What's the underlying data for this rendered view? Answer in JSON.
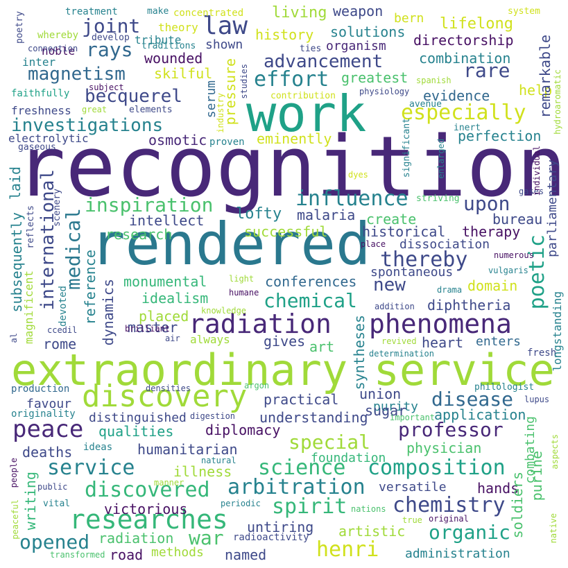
{
  "palette": {
    "c1": "#471063",
    "c2": "#3e4989",
    "c3": "#26828e",
    "c4": "#1fa187",
    "c5": "#4ac16d",
    "c6": "#a0da39",
    "c7": "#d0e11c",
    "c8": "#31688e",
    "c9": "#35b779",
    "c10": "#6ece58",
    "c11": "#482878",
    "c12": "#2a788e"
  },
  "words": [
    {
      "text": "recognition",
      "size": 120,
      "color": "c11"
    },
    {
      "text": "rendered",
      "size": 84,
      "color": "c12"
    },
    {
      "text": "work",
      "size": 72,
      "color": "c4"
    },
    {
      "text": "extraordinary service",
      "size": 62,
      "color": "c6"
    },
    {
      "text": "discovery",
      "size": 44,
      "color": "c6"
    },
    {
      "text": "radiation",
      "size": 38,
      "color": "c11"
    },
    {
      "text": "phenomena",
      "size": 38,
      "color": "c11"
    },
    {
      "text": "researches",
      "size": 38,
      "color": "c9"
    },
    {
      "text": "peace",
      "size": 34,
      "color": "c11"
    },
    {
      "text": "magnetism",
      "size": 26,
      "color": "c8"
    },
    {
      "text": "joint",
      "size": 28,
      "color": "c2"
    },
    {
      "text": "law",
      "size": 36,
      "color": "c2"
    },
    {
      "text": "rays",
      "size": 28,
      "color": "c8"
    },
    {
      "text": "advancement",
      "size": 26,
      "color": "c2"
    },
    {
      "text": "effort",
      "size": 30,
      "color": "c3"
    },
    {
      "text": "rare",
      "size": 28,
      "color": "c2"
    },
    {
      "text": "becquerel",
      "size": 26,
      "color": "c2"
    },
    {
      "text": "investigations",
      "size": 26,
      "color": "c3"
    },
    {
      "text": "especially",
      "size": 30,
      "color": "c7"
    },
    {
      "text": "inspiration",
      "size": 28,
      "color": "c5"
    },
    {
      "text": "influence",
      "size": 30,
      "color": "c3"
    },
    {
      "text": "upon",
      "size": 28,
      "color": "c2"
    },
    {
      "text": "medical",
      "size": 28,
      "color": "c12"
    },
    {
      "text": "international",
      "size": 26,
      "color": "c2"
    },
    {
      "text": "poetic",
      "size": 30,
      "color": "c4"
    },
    {
      "text": "thereby",
      "size": 30,
      "color": "c2"
    },
    {
      "text": "chemical",
      "size": 28,
      "color": "c4"
    },
    {
      "text": "arbitration",
      "size": 30,
      "color": "c3"
    },
    {
      "text": "composition",
      "size": 30,
      "color": "c4"
    },
    {
      "text": "science",
      "size": 30,
      "color": "c9"
    },
    {
      "text": "discovered",
      "size": 30,
      "color": "c9"
    },
    {
      "text": "service",
      "size": 30,
      "color": "c3"
    },
    {
      "text": "spirit",
      "size": 30,
      "color": "c9"
    },
    {
      "text": "chemistry",
      "size": 30,
      "color": "c2"
    },
    {
      "text": "special",
      "size": 28,
      "color": "c6"
    },
    {
      "text": "professor",
      "size": 28,
      "color": "c11"
    },
    {
      "text": "disease",
      "size": 28,
      "color": "c8"
    },
    {
      "text": "opened",
      "size": 28,
      "color": "c3"
    },
    {
      "text": "organic",
      "size": 28,
      "color": "c4"
    },
    {
      "text": "henri",
      "size": 30,
      "color": "c7"
    },
    {
      "text": "war",
      "size": 28,
      "color": "c5"
    },
    {
      "text": "new",
      "size": 26,
      "color": "c2"
    },
    {
      "text": "lifelong",
      "size": 22,
      "color": "c7"
    },
    {
      "text": "living",
      "size": 22,
      "color": "c6"
    },
    {
      "text": "weapon",
      "size": 20,
      "color": "c2"
    },
    {
      "text": "history",
      "size": 20,
      "color": "c7"
    },
    {
      "text": "solutions",
      "size": 20,
      "color": "c3"
    },
    {
      "text": "directorship",
      "size": 20,
      "color": "c1"
    },
    {
      "text": "organism",
      "size": 18,
      "color": "c11"
    },
    {
      "text": "combination",
      "size": 20,
      "color": "c3"
    },
    {
      "text": "greatest",
      "size": 20,
      "color": "c5"
    },
    {
      "text": "wounded",
      "size": 20,
      "color": "c1"
    },
    {
      "text": "skilful",
      "size": 20,
      "color": "c7"
    },
    {
      "text": "help",
      "size": 20,
      "color": "c7"
    },
    {
      "text": "evidence",
      "size": 20,
      "color": "c8"
    },
    {
      "text": "perfection",
      "size": 20,
      "color": "c3"
    },
    {
      "text": "osmotic",
      "size": 20,
      "color": "c11"
    },
    {
      "text": "eminently",
      "size": 20,
      "color": "c7"
    },
    {
      "text": "lofty",
      "size": 22,
      "color": "c3"
    },
    {
      "text": "malaria",
      "size": 20,
      "color": "c2"
    },
    {
      "text": "create",
      "size": 20,
      "color": "c5"
    },
    {
      "text": "bureau",
      "size": 20,
      "color": "c2"
    },
    {
      "text": "intellect",
      "size": 20,
      "color": "c2"
    },
    {
      "text": "research",
      "size": 20,
      "color": "c5"
    },
    {
      "text": "successful",
      "size": 20,
      "color": "c6"
    },
    {
      "text": "historical",
      "size": 20,
      "color": "c2"
    },
    {
      "text": "therapy",
      "size": 20,
      "color": "c1"
    },
    {
      "text": "dissociation",
      "size": 18,
      "color": "c2"
    },
    {
      "text": "spontaneous",
      "size": 18,
      "color": "c2"
    },
    {
      "text": "monumental",
      "size": 20,
      "color": "c9"
    },
    {
      "text": "conferences",
      "size": 20,
      "color": "c8"
    },
    {
      "text": "domain",
      "size": 20,
      "color": "c7"
    },
    {
      "text": "idealism",
      "size": 20,
      "color": "c9"
    },
    {
      "text": "diphtheria",
      "size": 20,
      "color": "c2"
    },
    {
      "text": "placed",
      "size": 20,
      "color": "c6"
    },
    {
      "text": "master",
      "size": 20,
      "color": "c2"
    },
    {
      "text": "rome",
      "size": 20,
      "color": "c2"
    },
    {
      "text": "gives",
      "size": 20,
      "color": "c2"
    },
    {
      "text": "art",
      "size": 20,
      "color": "c5"
    },
    {
      "text": "heart",
      "size": 20,
      "color": "c2"
    },
    {
      "text": "enters",
      "size": 18,
      "color": "c8"
    },
    {
      "text": "union",
      "size": 20,
      "color": "c2"
    },
    {
      "text": "purity",
      "size": 18,
      "color": "c3"
    },
    {
      "text": "practical",
      "size": 20,
      "color": "c2"
    },
    {
      "text": "application",
      "size": 20,
      "color": "c3"
    },
    {
      "text": "favour",
      "size": 18,
      "color": "c2"
    },
    {
      "text": "distinguished",
      "size": 18,
      "color": "c2"
    },
    {
      "text": "understanding",
      "size": 20,
      "color": "c2"
    },
    {
      "text": "sugar",
      "size": 20,
      "color": "c2"
    },
    {
      "text": "diplomacy",
      "size": 20,
      "color": "c1"
    },
    {
      "text": "qualities",
      "size": 20,
      "color": "c4"
    },
    {
      "text": "physician",
      "size": 20,
      "color": "c5"
    },
    {
      "text": "humanitarian",
      "size": 20,
      "color": "c2"
    },
    {
      "text": "deaths",
      "size": 20,
      "color": "c2"
    },
    {
      "text": "foundation",
      "size": 18,
      "color": "c9"
    },
    {
      "text": "illness",
      "size": 20,
      "color": "c6"
    },
    {
      "text": "versatile",
      "size": 18,
      "color": "c2"
    },
    {
      "text": "hands",
      "size": 20,
      "color": "c1"
    },
    {
      "text": "victorious",
      "size": 20,
      "color": "c1"
    },
    {
      "text": "untiring",
      "size": 20,
      "color": "c2"
    },
    {
      "text": "artistic",
      "size": 20,
      "color": "c6"
    },
    {
      "text": "radiation",
      "size": 20,
      "color": "c5"
    },
    {
      "text": "road",
      "size": 20,
      "color": "c1"
    },
    {
      "text": "methods",
      "size": 18,
      "color": "c6"
    },
    {
      "text": "named",
      "size": 20,
      "color": "c2"
    },
    {
      "text": "administration",
      "size": 18,
      "color": "c3"
    },
    {
      "text": "theory",
      "size": 16,
      "color": "c7"
    },
    {
      "text": "tribute",
      "size": 16,
      "color": "c3"
    },
    {
      "text": "shown",
      "size": 18,
      "color": "c2"
    },
    {
      "text": "noble",
      "size": 16,
      "color": "c1"
    },
    {
      "text": "inter",
      "size": 16,
      "color": "c3"
    },
    {
      "text": "freshness",
      "size": 16,
      "color": "c2"
    },
    {
      "text": "electrolytic",
      "size": 16,
      "color": "c2"
    },
    {
      "text": "bern",
      "size": 18,
      "color": "c7"
    },
    {
      "text": "proven",
      "size": 14,
      "color": "c3"
    },
    {
      "text": "treatment",
      "size": 14,
      "color": "c3"
    },
    {
      "text": "make",
      "size": 13,
      "color": "c3"
    },
    {
      "text": "concentrated",
      "size": 14,
      "color": "c7"
    },
    {
      "text": "system",
      "size": 13,
      "color": "c7"
    },
    {
      "text": "whereby",
      "size": 14,
      "color": "c6"
    },
    {
      "text": "develop",
      "size": 13,
      "color": "c2"
    },
    {
      "text": "traditions",
      "size": 13,
      "color": "c3"
    },
    {
      "text": "connection",
      "size": 12,
      "color": "c2"
    },
    {
      "text": "ties",
      "size": 13,
      "color": "c2"
    },
    {
      "text": "faithfully",
      "size": 14,
      "color": "c4"
    },
    {
      "text": "subject",
      "size": 12,
      "color": "c1"
    },
    {
      "text": "great",
      "size": 12,
      "color": "c6"
    },
    {
      "text": "elements",
      "size": 13,
      "color": "c2"
    },
    {
      "text": "gaseous",
      "size": 13,
      "color": "c2"
    },
    {
      "text": "contribution",
      "size": 13,
      "color": "c7"
    },
    {
      "text": "physiology",
      "size": 12,
      "color": "c2"
    },
    {
      "text": "avenue",
      "size": 13,
      "color": "c3"
    },
    {
      "text": "spanish",
      "size": 12,
      "color": "c6"
    },
    {
      "text": "inert",
      "size": 13,
      "color": "c3"
    },
    {
      "text": "dyes",
      "size": 12,
      "color": "c7"
    },
    {
      "text": "gases",
      "size": 12,
      "color": "c2"
    },
    {
      "text": "striving",
      "size": 13,
      "color": "c5"
    },
    {
      "text": "place",
      "size": 12,
      "color": "c1"
    },
    {
      "text": "numerous",
      "size": 12,
      "color": "c1"
    },
    {
      "text": "vulgaris",
      "size": 12,
      "color": "c3"
    },
    {
      "text": "drama",
      "size": 12,
      "color": "c3"
    },
    {
      "text": "light",
      "size": 12,
      "color": "c6"
    },
    {
      "text": "humane",
      "size": 12,
      "color": "c1"
    },
    {
      "text": "knowledge",
      "size": 12,
      "color": "c6"
    },
    {
      "text": "addition",
      "size": 12,
      "color": "c2"
    },
    {
      "text": "brilliant",
      "size": 12,
      "color": "c1"
    },
    {
      "text": "air",
      "size": 12,
      "color": "c2"
    },
    {
      "text": "always",
      "size": 16,
      "color": "c6"
    },
    {
      "text": "ccedil",
      "size": 12,
      "color": "c2"
    },
    {
      "text": "revived",
      "size": 12,
      "color": "c6"
    },
    {
      "text": "fresh",
      "size": 14,
      "color": "c2"
    },
    {
      "text": "determination",
      "size": 12,
      "color": "c3"
    },
    {
      "text": "densities",
      "size": 12,
      "color": "c2"
    },
    {
      "text": "argon",
      "size": 12,
      "color": "c5"
    },
    {
      "text": "production",
      "size": 14,
      "color": "c8"
    },
    {
      "text": "philologist",
      "size": 13,
      "color": "c3"
    },
    {
      "text": "lupus",
      "size": 12,
      "color": "c2"
    },
    {
      "text": "originality",
      "size": 14,
      "color": "c3"
    },
    {
      "text": "digestion",
      "size": 12,
      "color": "c2"
    },
    {
      "text": "important",
      "size": 12,
      "color": "c5"
    },
    {
      "text": "ideas",
      "size": 14,
      "color": "c3"
    },
    {
      "text": "natural",
      "size": 12,
      "color": "c3"
    },
    {
      "text": "people",
      "size": 12,
      "color": "c1"
    },
    {
      "text": "manner",
      "size": 12,
      "color": "c6"
    },
    {
      "text": "public",
      "size": 12,
      "color": "c2"
    },
    {
      "text": "vital",
      "size": 13,
      "color": "c3"
    },
    {
      "text": "periodic",
      "size": 12,
      "color": "c3"
    },
    {
      "text": "nations",
      "size": 12,
      "color": "c5"
    },
    {
      "text": "true",
      "size": 12,
      "color": "c6"
    },
    {
      "text": "original",
      "size": 12,
      "color": "c1"
    },
    {
      "text": "radioactivity",
      "size": 14,
      "color": "c2"
    },
    {
      "text": "transformed",
      "size": 12,
      "color": "c5"
    },
    {
      "text": "poetry",
      "size": 13,
      "color": "c2"
    },
    {
      "text": "scenery",
      "size": 13,
      "color": "c2"
    },
    {
      "text": "reflects",
      "size": 13,
      "color": "c2"
    },
    {
      "text": "al",
      "size": 12,
      "color": "c2"
    },
    {
      "text": "peaceful",
      "size": 12,
      "color": "c6"
    },
    {
      "text": "devoted",
      "size": 14,
      "color": "c3"
    },
    {
      "text": "magnificent",
      "size": 16,
      "color": "c6"
    },
    {
      "text": "laid",
      "size": 20,
      "color": "c3"
    },
    {
      "text": "subsequently",
      "size": 20,
      "color": "c3"
    },
    {
      "text": "reference",
      "size": 20,
      "color": "c3"
    },
    {
      "text": "dynamics",
      "size": 20,
      "color": "c2"
    },
    {
      "text": "syntheses",
      "size": 20,
      "color": "c3"
    },
    {
      "text": "writing",
      "size": 20,
      "color": "c9"
    },
    {
      "text": "pressure",
      "size": 20,
      "color": "c7"
    },
    {
      "text": "serum",
      "size": 18,
      "color": "c8"
    },
    {
      "text": "industry",
      "size": 12,
      "color": "c7"
    },
    {
      "text": "studies",
      "size": 12,
      "color": "c2"
    },
    {
      "text": "remarkable",
      "size": 20,
      "color": "c2"
    },
    {
      "text": "hydroaromatic",
      "size": 12,
      "color": "c6"
    },
    {
      "text": "significant",
      "size": 13,
      "color": "c3"
    },
    {
      "text": "enlarged",
      "size": 12,
      "color": "c3"
    },
    {
      "text": "individual",
      "size": 12,
      "color": "c1"
    },
    {
      "text": "parliamentary",
      "size": 18,
      "color": "c2"
    },
    {
      "text": "longstanding",
      "size": 16,
      "color": "c3"
    },
    {
      "text": "purine",
      "size": 20,
      "color": "c5"
    },
    {
      "text": "combating",
      "size": 18,
      "color": "c5"
    },
    {
      "text": "soldiers",
      "size": 20,
      "color": "c5"
    },
    {
      "text": "aspects",
      "size": 12,
      "color": "c6"
    },
    {
      "text": "native",
      "size": 12,
      "color": "c6"
    }
  ]
}
